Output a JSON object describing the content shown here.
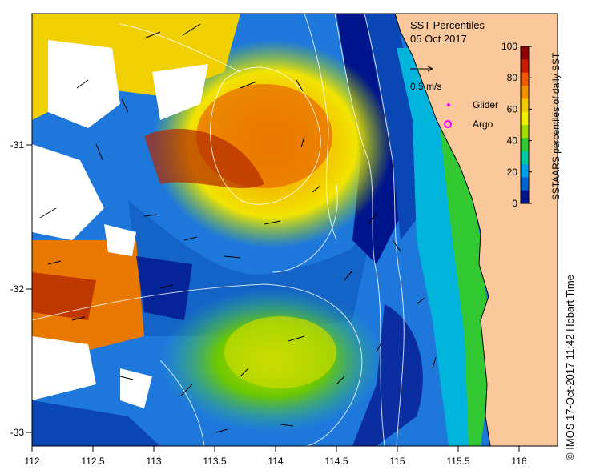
{
  "map": {
    "title": "SST Percentiles",
    "date": "05 Oct 2017",
    "x_ticks": [
      "112",
      "112.5",
      "113",
      "113.5",
      "114",
      "114.5",
      "115",
      "115.5",
      "116"
    ],
    "y_ticks": [
      "-31",
      "-32",
      "-33"
    ],
    "vector_scale_label": "0.5 m/s",
    "legend": {
      "glider_label": "Glider",
      "argo_label": "Argo"
    },
    "colorbar": {
      "label": "SSTAARS percentiles of daily SST",
      "ticks": [
        "100",
        "80",
        "60",
        "40",
        "20",
        "0"
      ],
      "colors": [
        "#8b0000",
        "#c81e00",
        "#ee5a00",
        "#f29200",
        "#f2c800",
        "#f2ee00",
        "#a0dc00",
        "#32c832",
        "#00c8a0",
        "#00a0e6",
        "#0064d2",
        "#00148c"
      ]
    },
    "credit": "© IMOS 17-Oct-2017 11:42 Hobart Time",
    "colors": {
      "land": "#fac89b",
      "marker": "#ff00ff"
    }
  }
}
